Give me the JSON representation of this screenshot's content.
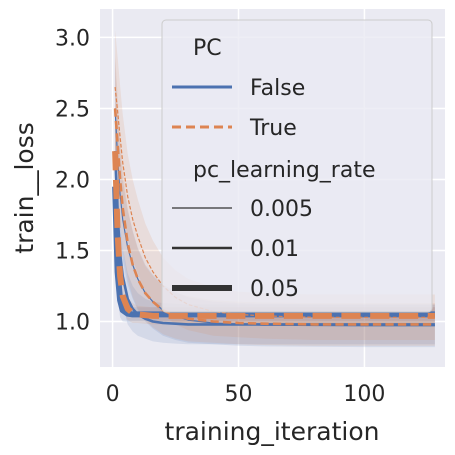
{
  "chart_data": {
    "type": "line",
    "xlabel": "training_iteration",
    "ylabel": "train__loss",
    "xlim": [
      -5,
      132
    ],
    "ylim": [
      0.68,
      3.2
    ],
    "xticks": [
      0,
      50,
      100
    ],
    "yticks": [
      1.0,
      1.5,
      2.0,
      2.5,
      3.0
    ],
    "xtick_labels": [
      "0",
      "50",
      "100"
    ],
    "ytick_labels": [
      "1.0",
      "1.5",
      "2.0",
      "2.5",
      "3.0"
    ],
    "grid": true,
    "legend": {
      "placement": "top-right",
      "hue_title": "PC",
      "hue_entries": [
        "False",
        "True"
      ],
      "size_title": "pc_learning_rate",
      "size_entries": [
        "0.005",
        "0.01",
        "0.05"
      ]
    },
    "colors": {
      "False": "#4c72b0",
      "True": "#dd8452",
      "background": "#eaeaf2",
      "grid": "#ffffff"
    },
    "series": [
      {
        "PC": "False",
        "pc_learning_rate": "0.005",
        "x": [
          1,
          2,
          3,
          4,
          6,
          8,
          10,
          13,
          16,
          20,
          25,
          30,
          40,
          50,
          60,
          80,
          100,
          128
        ],
        "y": [
          2.5,
          2.15,
          1.9,
          1.72,
          1.52,
          1.4,
          1.3,
          1.2,
          1.14,
          1.08,
          1.04,
          1.01,
          0.99,
          0.98,
          0.975,
          0.972,
          0.97,
          0.97
        ],
        "band": [
          0.35,
          0.32,
          0.3,
          0.28,
          0.26,
          0.24,
          0.22,
          0.2,
          0.19,
          0.18,
          0.17,
          0.16,
          0.15,
          0.15,
          0.15,
          0.15,
          0.15,
          0.15
        ]
      },
      {
        "PC": "False",
        "pc_learning_rate": "0.01",
        "x": [
          1,
          2,
          3,
          4,
          6,
          8,
          10,
          13,
          16,
          20,
          25,
          30,
          40,
          50,
          60,
          80,
          100,
          128
        ],
        "y": [
          2.2,
          1.75,
          1.48,
          1.32,
          1.16,
          1.09,
          1.05,
          1.02,
          1.0,
          0.99,
          0.985,
          0.98,
          0.98,
          0.98,
          0.98,
          0.98,
          0.98,
          0.98
        ],
        "band": [
          0.3,
          0.26,
          0.22,
          0.2,
          0.18,
          0.16,
          0.15,
          0.14,
          0.14,
          0.14,
          0.14,
          0.14,
          0.14,
          0.14,
          0.14,
          0.14,
          0.14,
          0.14
        ]
      },
      {
        "PC": "False",
        "pc_learning_rate": "0.05",
        "x": [
          1,
          2,
          3,
          4,
          6,
          8,
          10,
          13,
          16,
          20,
          30,
          50,
          80,
          128
        ],
        "y": [
          1.95,
          1.35,
          1.15,
          1.08,
          1.055,
          1.05,
          1.05,
          1.05,
          1.05,
          1.05,
          1.05,
          1.05,
          1.05,
          1.05
        ],
        "band": [
          0.25,
          0.18,
          0.12,
          0.08,
          0.06,
          0.05,
          0.05,
          0.05,
          0.05,
          0.05,
          0.05,
          0.05,
          0.05,
          0.05
        ]
      },
      {
        "PC": "True",
        "pc_learning_rate": "0.005",
        "x": [
          1,
          2,
          3,
          4,
          6,
          8,
          10,
          13,
          16,
          20,
          25,
          30,
          40,
          50,
          60,
          80,
          100,
          128
        ],
        "y": [
          2.65,
          2.48,
          2.3,
          2.12,
          1.88,
          1.72,
          1.6,
          1.45,
          1.35,
          1.25,
          1.17,
          1.12,
          1.07,
          1.05,
          1.04,
          1.03,
          1.03,
          1.03
        ],
        "band": [
          0.4,
          0.38,
          0.36,
          0.34,
          0.3,
          0.28,
          0.26,
          0.24,
          0.22,
          0.2,
          0.19,
          0.18,
          0.17,
          0.16,
          0.16,
          0.16,
          0.16,
          0.16
        ]
      },
      {
        "PC": "True",
        "pc_learning_rate": "0.01",
        "x": [
          1,
          2,
          3,
          4,
          6,
          8,
          10,
          13,
          16,
          20,
          25,
          30,
          40,
          50,
          60,
          80,
          100,
          128
        ],
        "y": [
          2.5,
          2.25,
          2.0,
          1.8,
          1.55,
          1.4,
          1.3,
          1.2,
          1.14,
          1.08,
          1.04,
          1.02,
          1.0,
          0.99,
          0.985,
          0.98,
          0.98,
          0.98
        ],
        "band": [
          0.38,
          0.34,
          0.3,
          0.28,
          0.25,
          0.23,
          0.21,
          0.19,
          0.18,
          0.17,
          0.16,
          0.16,
          0.15,
          0.15,
          0.15,
          0.15,
          0.15,
          0.15
        ]
      },
      {
        "PC": "True",
        "pc_learning_rate": "0.05",
        "x": [
          1,
          2,
          3,
          4,
          6,
          8,
          10,
          13,
          16,
          20,
          30,
          50,
          80,
          128
        ],
        "y": [
          2.2,
          1.62,
          1.32,
          1.18,
          1.09,
          1.06,
          1.05,
          1.045,
          1.04,
          1.04,
          1.04,
          1.04,
          1.04,
          1.04
        ],
        "band": [
          0.3,
          0.22,
          0.15,
          0.1,
          0.08,
          0.07,
          0.06,
          0.06,
          0.06,
          0.06,
          0.06,
          0.06,
          0.06,
          0.06
        ]
      }
    ]
  }
}
